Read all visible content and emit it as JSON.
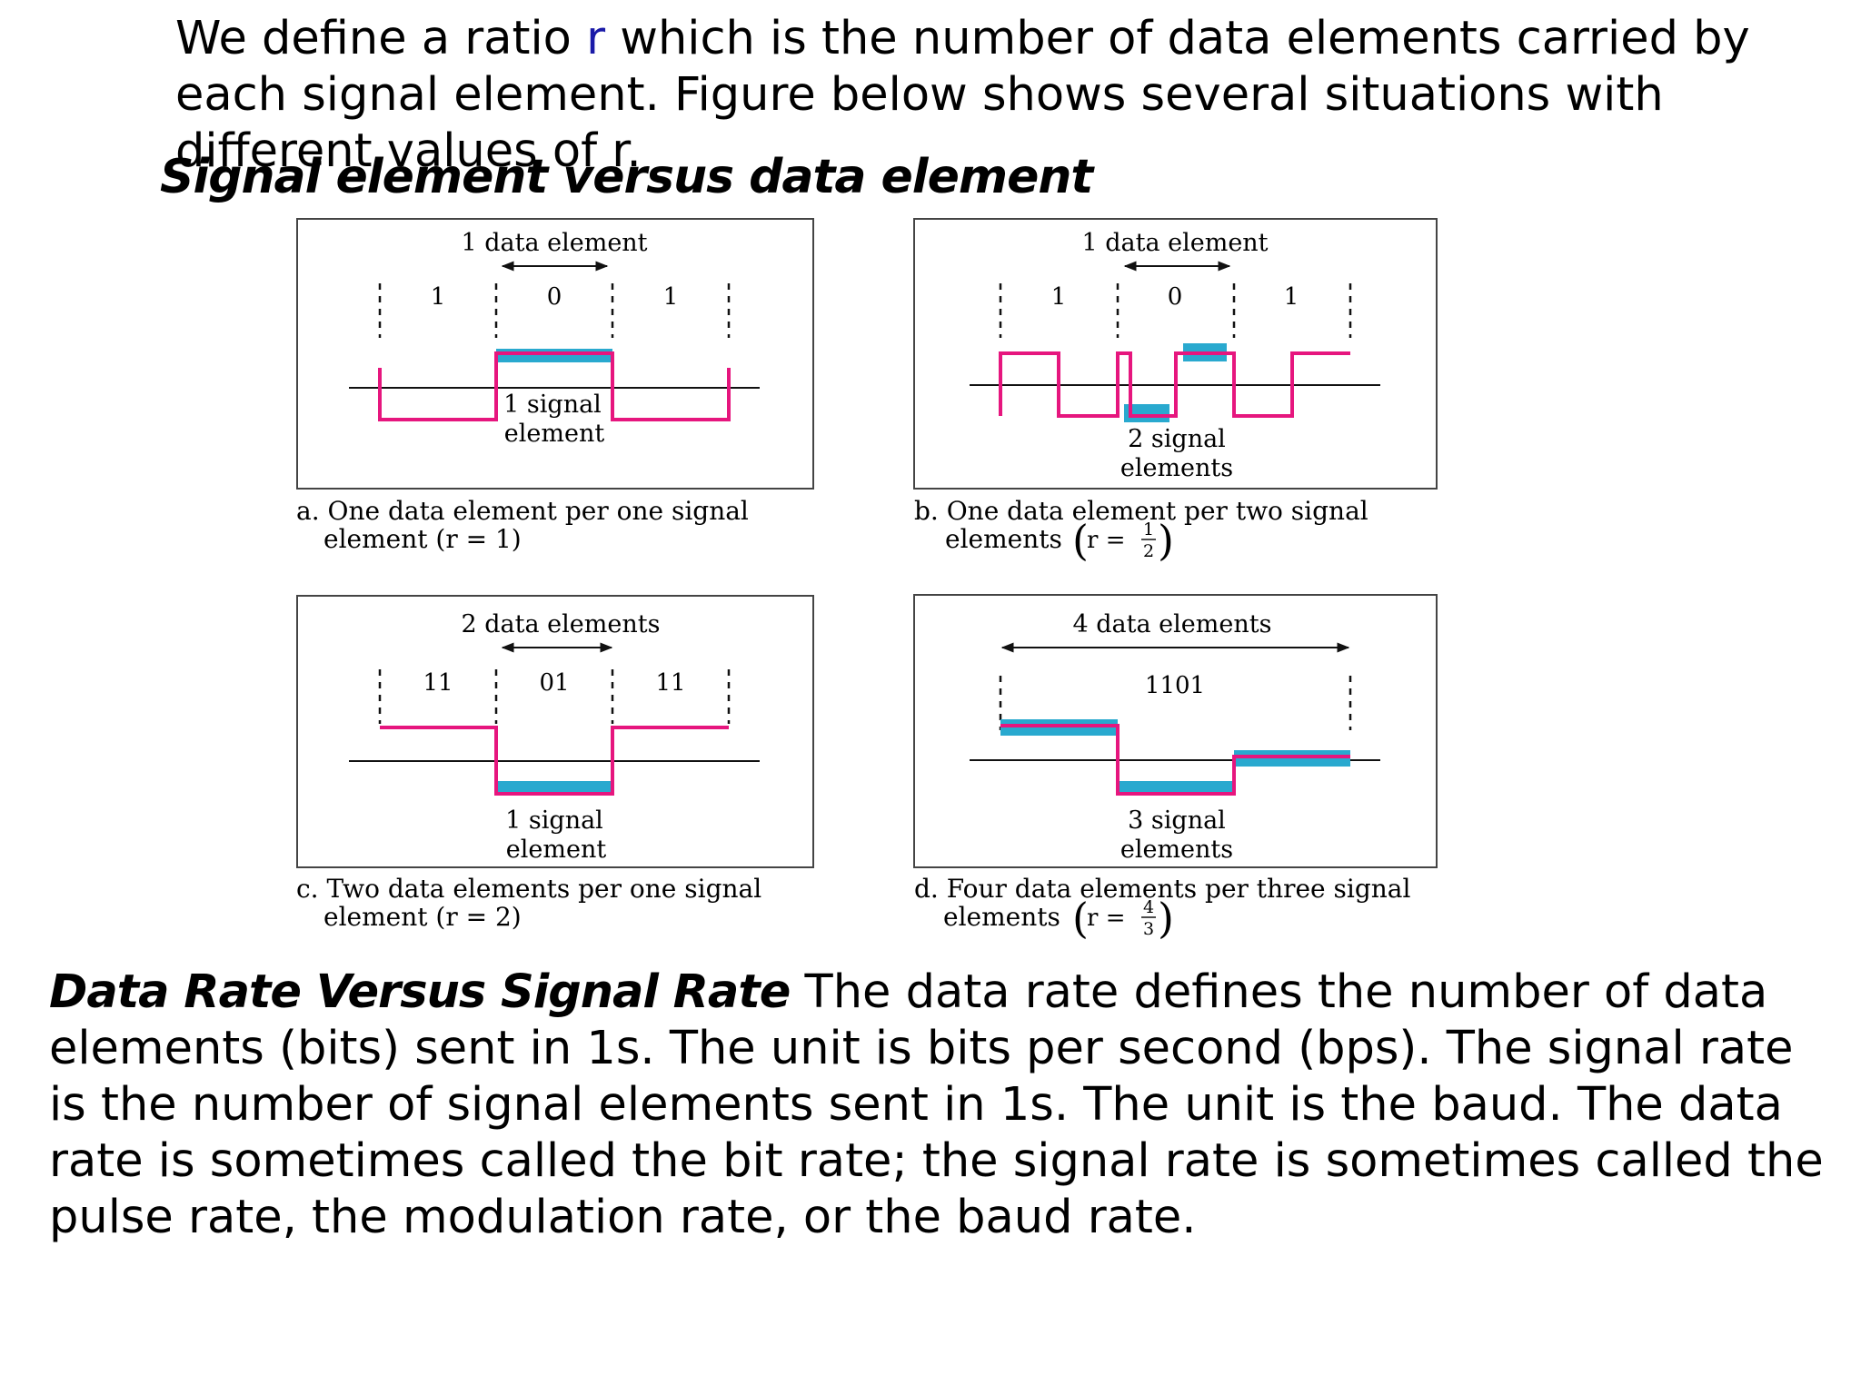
{
  "intro": {
    "before": "We define a ratio ",
    "r": "r",
    "after": " which is the number of data elements carried by each signal element. Figure below shows several situations with different values of r."
  },
  "figure_title": "Signal element versus data element",
  "colors": {
    "signal": "#e6167e",
    "highlight": "#29a9cf",
    "axis": "#111111",
    "r_var": "#1a1aa8"
  },
  "panels": {
    "a": {
      "top_label": "1 data element",
      "bits": [
        "1",
        "0",
        "1"
      ],
      "annot_line1": "1 signal",
      "annot_line2": "element",
      "caption_line1": "a. One data element per one signal",
      "caption_line2": "element (r = 1)"
    },
    "b": {
      "top_label": "1 data element",
      "bits": [
        "1",
        "0",
        "1"
      ],
      "annot_line1": "2 signal",
      "annot_line2": "elements",
      "caption_line1": "b. One data element per two signal",
      "caption_line2": "elements",
      "r_text": "r =",
      "frac_num": "1",
      "frac_den": "2"
    },
    "c": {
      "top_label": "2 data elements",
      "bits": [
        "11",
        "01",
        "11"
      ],
      "annot_line1": "1 signal",
      "annot_line2": "element",
      "caption_line1": "c. Two data elements per one signal",
      "caption_line2": "element (r = 2)"
    },
    "d": {
      "top_label": "4 data elements",
      "bits": [
        "1101"
      ],
      "annot_line1": "3 signal",
      "annot_line2": "elements",
      "caption_line1": "d. Four data elements per three signal",
      "caption_line2": "elements",
      "r_text": "r =",
      "frac_num": "4",
      "frac_den": "3"
    }
  },
  "body": {
    "run_in": "Data Rate Versus Signal Rate",
    "text": " The data rate defines the number of data elements (bits) sent in 1s. The unit is bits per second (bps). The signal rate is the number of signal elements sent in 1s. The unit is the baud. The data rate is sometimes called the bit rate; the signal rate is sometimes called the pulse rate, the modulation rate, or the baud rate."
  }
}
